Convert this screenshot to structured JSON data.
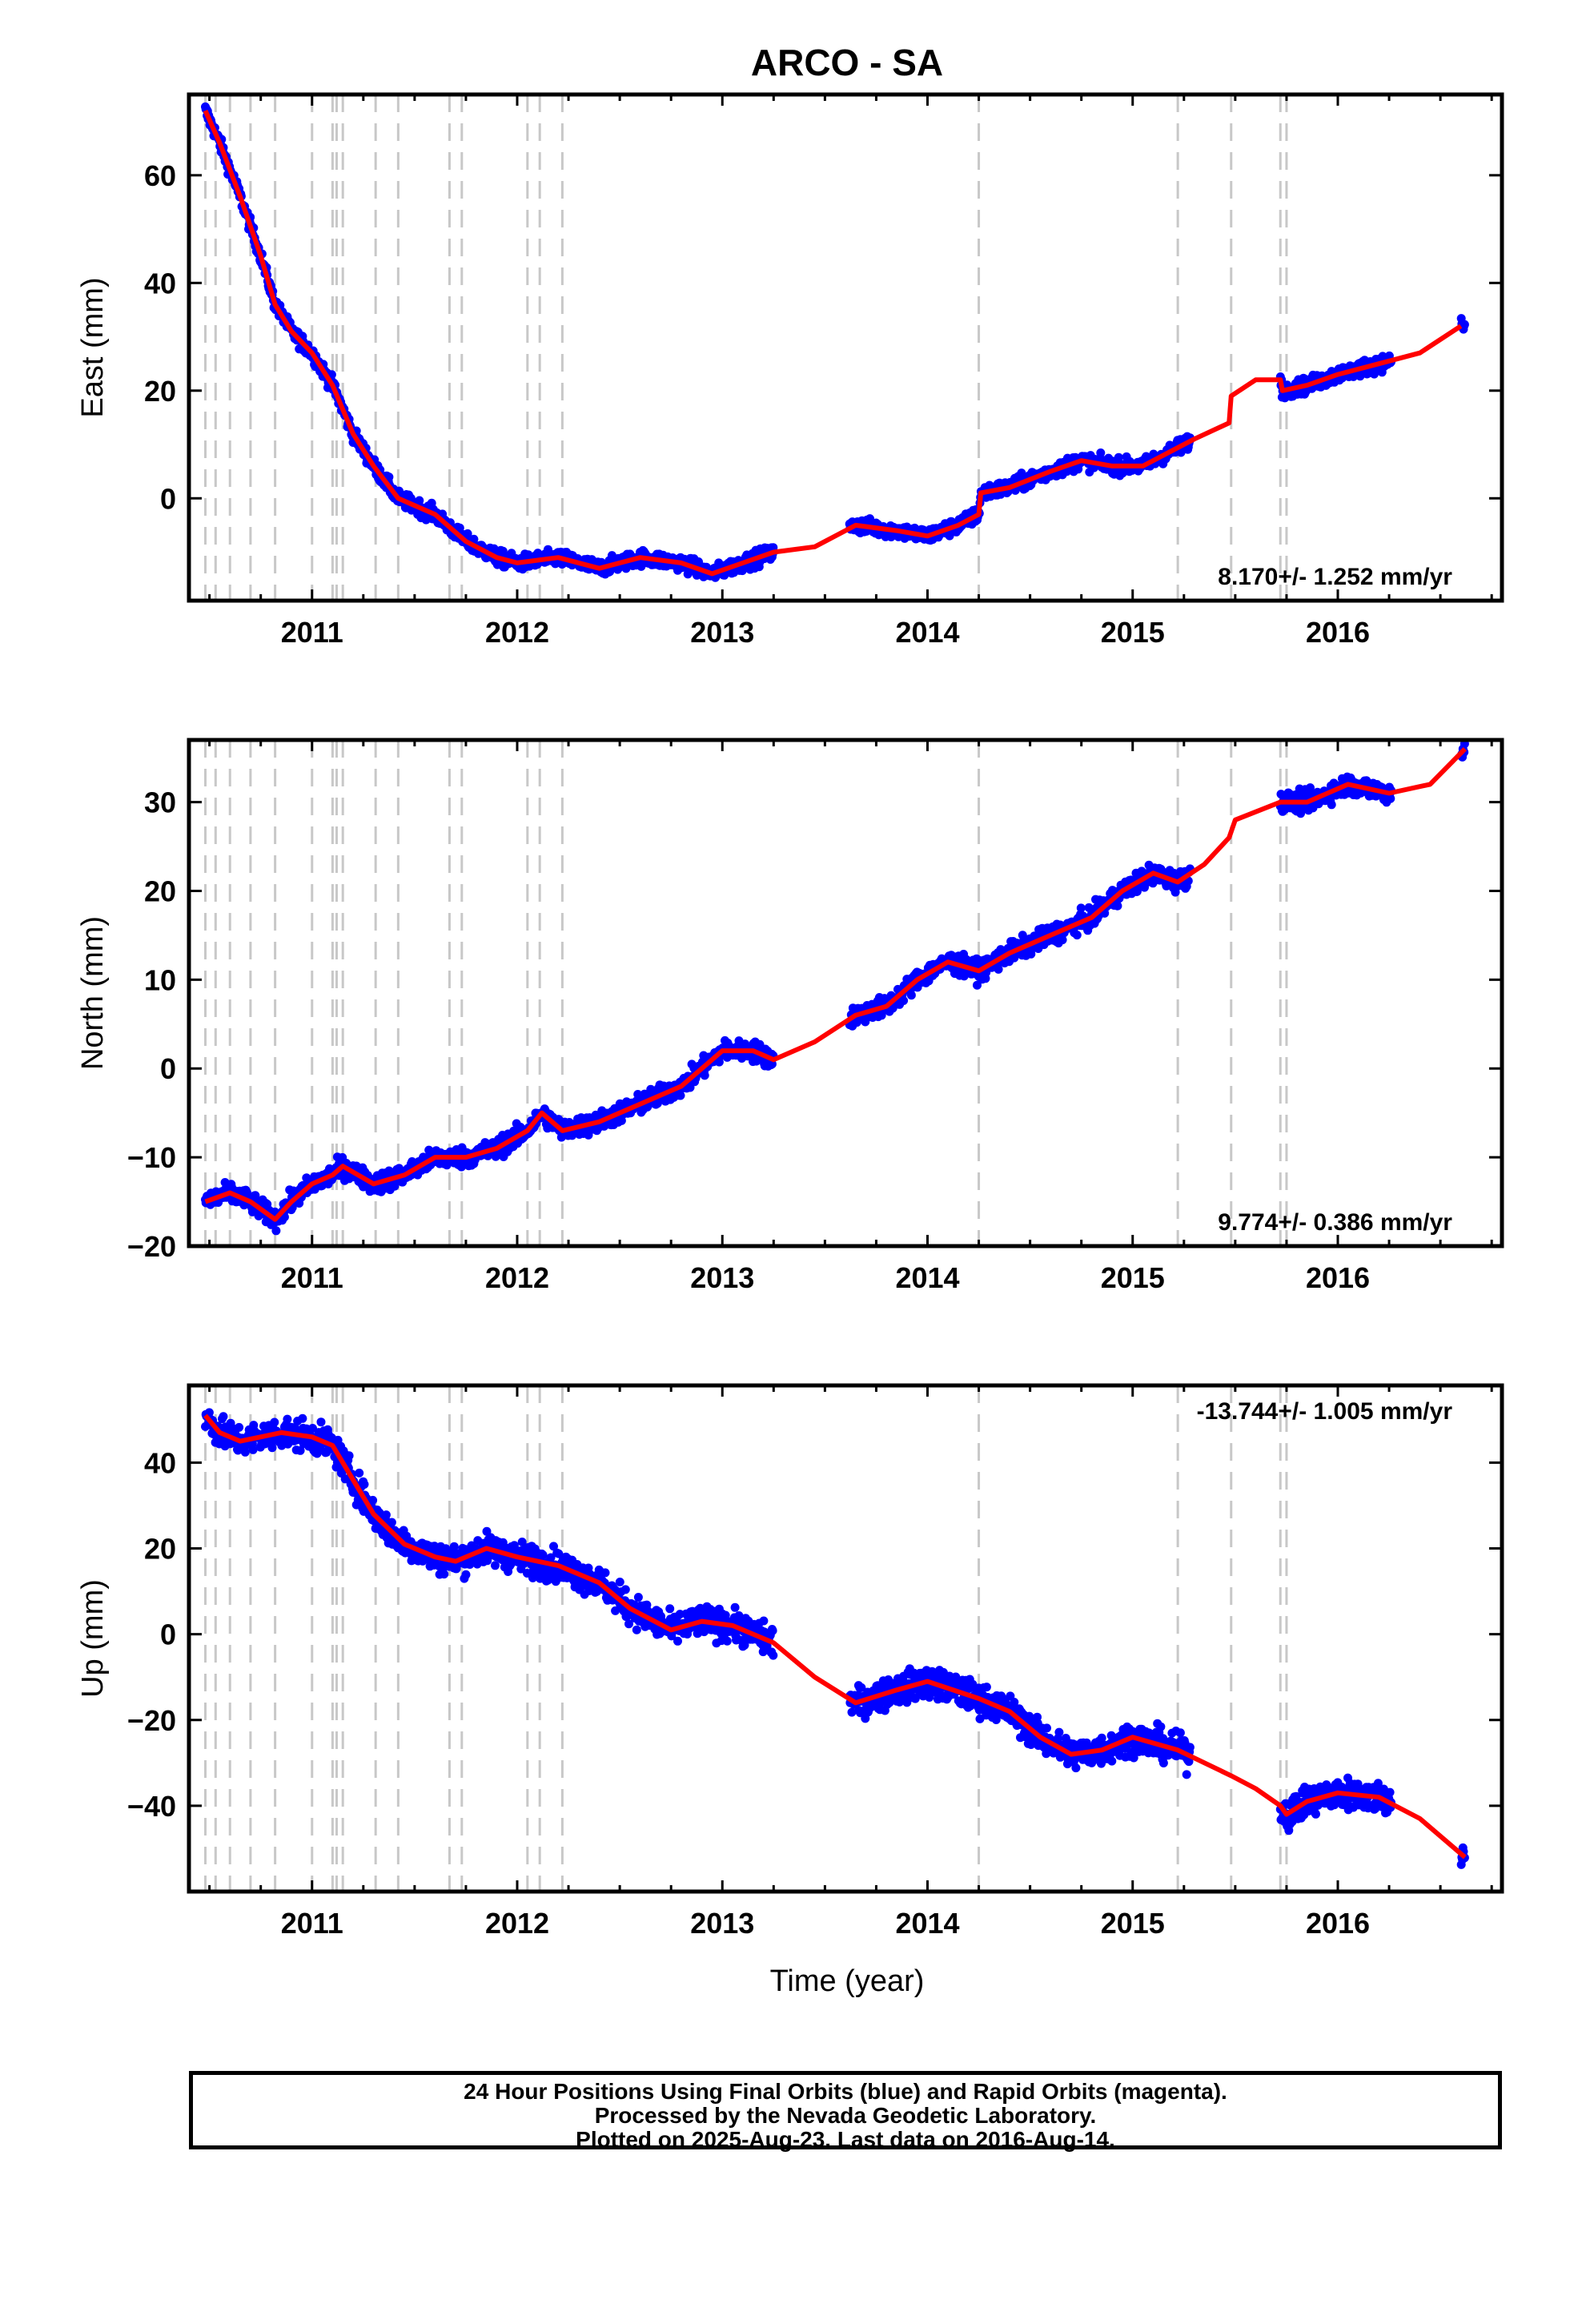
{
  "title": "ARCO - SA",
  "xlabel": "Time (year)",
  "colors": {
    "data": "#0000ff",
    "model": "#ff0000",
    "event_line": "#c8c8c8",
    "frame": "#000000"
  },
  "footer": {
    "line1": "24 Hour Positions Using Final Orbits (blue) and Rapid Orbits (magenta).",
    "line2": "Processed by the Nevada Geodetic Laboratory.",
    "line3": "Plotted on 2025-Aug-23. Last data on 2016-Aug-14."
  },
  "chart_data": [
    {
      "type": "scatter",
      "panel": "east",
      "ylabel": "East (mm)",
      "rate_label": "8.170+/- 1.252 mm/yr",
      "xlim": [
        2010.4,
        2016.8
      ],
      "ylim": [
        -19,
        75
      ],
      "yticks": [
        0,
        20,
        40,
        60
      ],
      "xticks": [
        2011,
        2012,
        2013,
        2014,
        2015,
        2016
      ],
      "event_lines": [
        2010.48,
        2010.53,
        2010.6,
        2010.7,
        2010.82,
        2011.0,
        2011.1,
        2011.12,
        2011.15,
        2011.31,
        2011.42,
        2011.67,
        2011.73,
        2012.05,
        2012.11,
        2012.22,
        2014.25,
        2015.22,
        2015.48,
        2015.72,
        2015.75
      ],
      "model": {
        "t": [
          2010.48,
          2010.55,
          2010.65,
          2010.75,
          2010.82,
          2010.9,
          2011.0,
          2011.1,
          2011.2,
          2011.3,
          2011.42,
          2011.6,
          2011.75,
          2011.9,
          2012.0,
          2012.2,
          2012.4,
          2012.6,
          2012.8,
          2012.95,
          2013.1,
          2013.25,
          2013.45,
          2013.65,
          2013.85,
          2014.0,
          2014.15,
          2014.25,
          2014.26,
          2014.4,
          2014.6,
          2014.75,
          2014.9,
          2015.05,
          2015.2,
          2015.3,
          2015.47,
          2015.48,
          2015.6,
          2015.72,
          2015.73,
          2015.85,
          2016.0,
          2016.2,
          2016.4,
          2016.6
        ],
        "y": [
          72,
          66,
          56,
          45,
          36,
          31,
          27,
          21,
          12,
          6,
          0,
          -3,
          -8,
          -11,
          -12,
          -11,
          -13,
          -11,
          -12,
          -14,
          -12,
          -10,
          -9,
          -5,
          -6,
          -7,
          -5,
          -3,
          1,
          2,
          5,
          7,
          6,
          6,
          9,
          11,
          14,
          19,
          22,
          22,
          20,
          21,
          23,
          25,
          27,
          32
        ]
      },
      "observations": {
        "t_start": 2010.48,
        "t_end": 2016.62,
        "gaps": [
          [
            2013.25,
            2013.62
          ],
          [
            2015.28,
            2015.72
          ],
          [
            2016.26,
            2016.6
          ]
        ],
        "scatter_mm": 1.4
      }
    },
    {
      "type": "scatter",
      "panel": "north",
      "ylabel": "North (mm)",
      "rate_label": "9.774+/- 0.386 mm/yr",
      "xlim": [
        2010.4,
        2016.8
      ],
      "ylim": [
        -20,
        37
      ],
      "yticks": [
        -20,
        -10,
        0,
        10,
        20,
        30
      ],
      "xticks": [
        2011,
        2012,
        2013,
        2014,
        2015,
        2016
      ],
      "event_lines": [
        2010.48,
        2010.53,
        2010.6,
        2010.7,
        2010.82,
        2011.0,
        2011.1,
        2011.12,
        2011.15,
        2011.31,
        2011.42,
        2011.67,
        2011.73,
        2012.05,
        2012.11,
        2012.22,
        2014.25,
        2015.22,
        2015.48,
        2015.72,
        2015.75
      ],
      "model": {
        "t": [
          2010.48,
          2010.6,
          2010.7,
          2010.82,
          2010.9,
          2011.0,
          2011.1,
          2011.15,
          2011.3,
          2011.45,
          2011.6,
          2011.75,
          2011.9,
          2012.05,
          2012.12,
          2012.22,
          2012.4,
          2012.6,
          2012.8,
          2013.0,
          2013.15,
          2013.25,
          2013.45,
          2013.65,
          2013.8,
          2013.95,
          2014.1,
          2014.25,
          2014.4,
          2014.6,
          2014.8,
          2014.95,
          2015.1,
          2015.22,
          2015.35,
          2015.47,
          2015.5,
          2015.72,
          2015.85,
          2016.05,
          2016.25,
          2016.45,
          2016.62
        ],
        "y": [
          -15,
          -14,
          -15,
          -17,
          -15,
          -13,
          -12,
          -11,
          -13,
          -12,
          -10,
          -10,
          -9,
          -7,
          -5,
          -7,
          -6,
          -4,
          -2,
          2,
          2,
          1,
          3,
          6,
          7,
          10,
          12,
          11,
          13,
          15,
          17,
          20,
          22,
          21,
          23,
          26,
          28,
          30,
          30,
          32,
          31,
          32,
          36
        ]
      },
      "observations": {
        "t_start": 2010.48,
        "t_end": 2016.62,
        "gaps": [
          [
            2013.25,
            2013.62
          ],
          [
            2015.28,
            2015.72
          ],
          [
            2016.26,
            2016.6
          ]
        ],
        "scatter_mm": 1.1
      }
    },
    {
      "type": "scatter",
      "panel": "up",
      "ylabel": "Up (mm)",
      "rate_label": "-13.744+/- 1.005 mm/yr",
      "xlim": [
        2010.4,
        2016.8
      ],
      "ylim": [
        -60,
        58
      ],
      "yticks": [
        -40,
        -20,
        0,
        20,
        40
      ],
      "xticks": [
        2011,
        2012,
        2013,
        2014,
        2015,
        2016
      ],
      "event_lines": [
        2010.48,
        2010.53,
        2010.6,
        2010.7,
        2010.82,
        2011.0,
        2011.1,
        2011.12,
        2011.15,
        2011.31,
        2011.42,
        2011.67,
        2011.73,
        2012.05,
        2012.11,
        2012.22,
        2014.25,
        2015.22,
        2015.48,
        2015.72,
        2015.75
      ],
      "model": {
        "t": [
          2010.48,
          2010.55,
          2010.65,
          2010.75,
          2010.85,
          2011.0,
          2011.1,
          2011.2,
          2011.3,
          2011.45,
          2011.6,
          2011.7,
          2011.85,
          2012.0,
          2012.2,
          2012.4,
          2012.55,
          2012.75,
          2012.9,
          2013.05,
          2013.25,
          2013.45,
          2013.65,
          2013.85,
          2014.0,
          2014.25,
          2014.4,
          2014.55,
          2014.7,
          2014.85,
          2015.0,
          2015.22,
          2015.35,
          2015.48,
          2015.6,
          2015.72,
          2015.75,
          2015.85,
          2016.0,
          2016.2,
          2016.4,
          2016.62
        ],
        "y": [
          51,
          47,
          45,
          46,
          47,
          46,
          44,
          36,
          28,
          21,
          18,
          17,
          20,
          18,
          16,
          12,
          6,
          1,
          3,
          2,
          -2,
          -10,
          -16,
          -13,
          -11,
          -15,
          -18,
          -24,
          -28,
          -27,
          -24,
          -27,
          -30,
          -33,
          -36,
          -40,
          -42,
          -39,
          -37,
          -38,
          -43,
          -52
        ]
      },
      "observations": {
        "t_start": 2010.48,
        "t_end": 2016.62,
        "gaps": [
          [
            2013.25,
            2013.62
          ],
          [
            2015.28,
            2015.72
          ],
          [
            2016.26,
            2016.6
          ]
        ],
        "scatter_mm": 3.5
      }
    }
  ]
}
